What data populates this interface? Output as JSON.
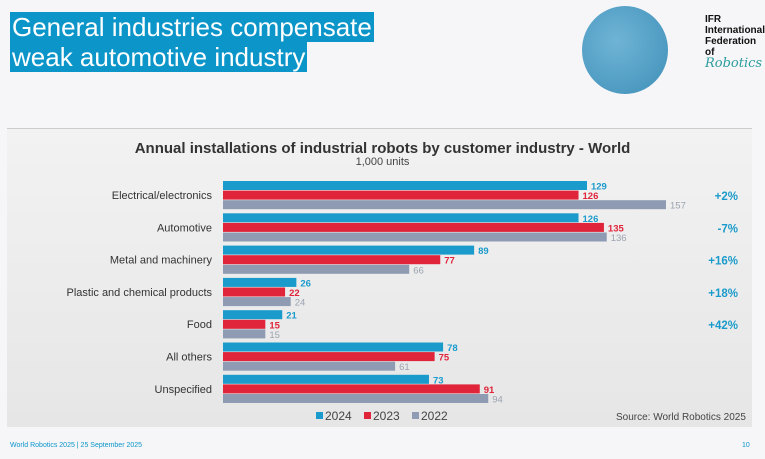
{
  "slide": {
    "title_line1": "General industries compensate",
    "title_line2": "weak automotive industry",
    "logo": {
      "line1": "IFR",
      "line2": "International",
      "line3": "Federation of",
      "line4": "Robotics"
    },
    "footer_left": "World Robotics 2025  | 25 September 2025",
    "page_number": "10"
  },
  "chart_data": {
    "type": "bar",
    "orientation": "horizontal",
    "title": "Annual installations of industrial robots by customer industry - World",
    "subtitle": "1,000 units",
    "categories": [
      "Electrical/electronics",
      "Automotive",
      "Metal and machinery",
      "Plastic and chemical products",
      "Food",
      "All others",
      "Unspecified"
    ],
    "series": [
      {
        "name": "2024",
        "color": "#1a9bcb",
        "values": [
          129,
          126,
          89,
          26,
          21,
          78,
          73
        ]
      },
      {
        "name": "2023",
        "color": "#e0243a",
        "values": [
          126,
          135,
          77,
          22,
          15,
          75,
          91
        ]
      },
      {
        "name": "2022",
        "color": "#8e9bb2",
        "values": [
          157,
          136,
          66,
          24,
          15,
          61,
          94
        ]
      }
    ],
    "growth_labels": [
      "+2%",
      "-7%",
      "+16%",
      "+18%",
      "+42%"
    ],
    "growth_color": "#1a9bcb",
    "xlim": [
      0,
      157
    ],
    "legend_placement": "bottom",
    "source": "Source: World Robotics 2025"
  }
}
